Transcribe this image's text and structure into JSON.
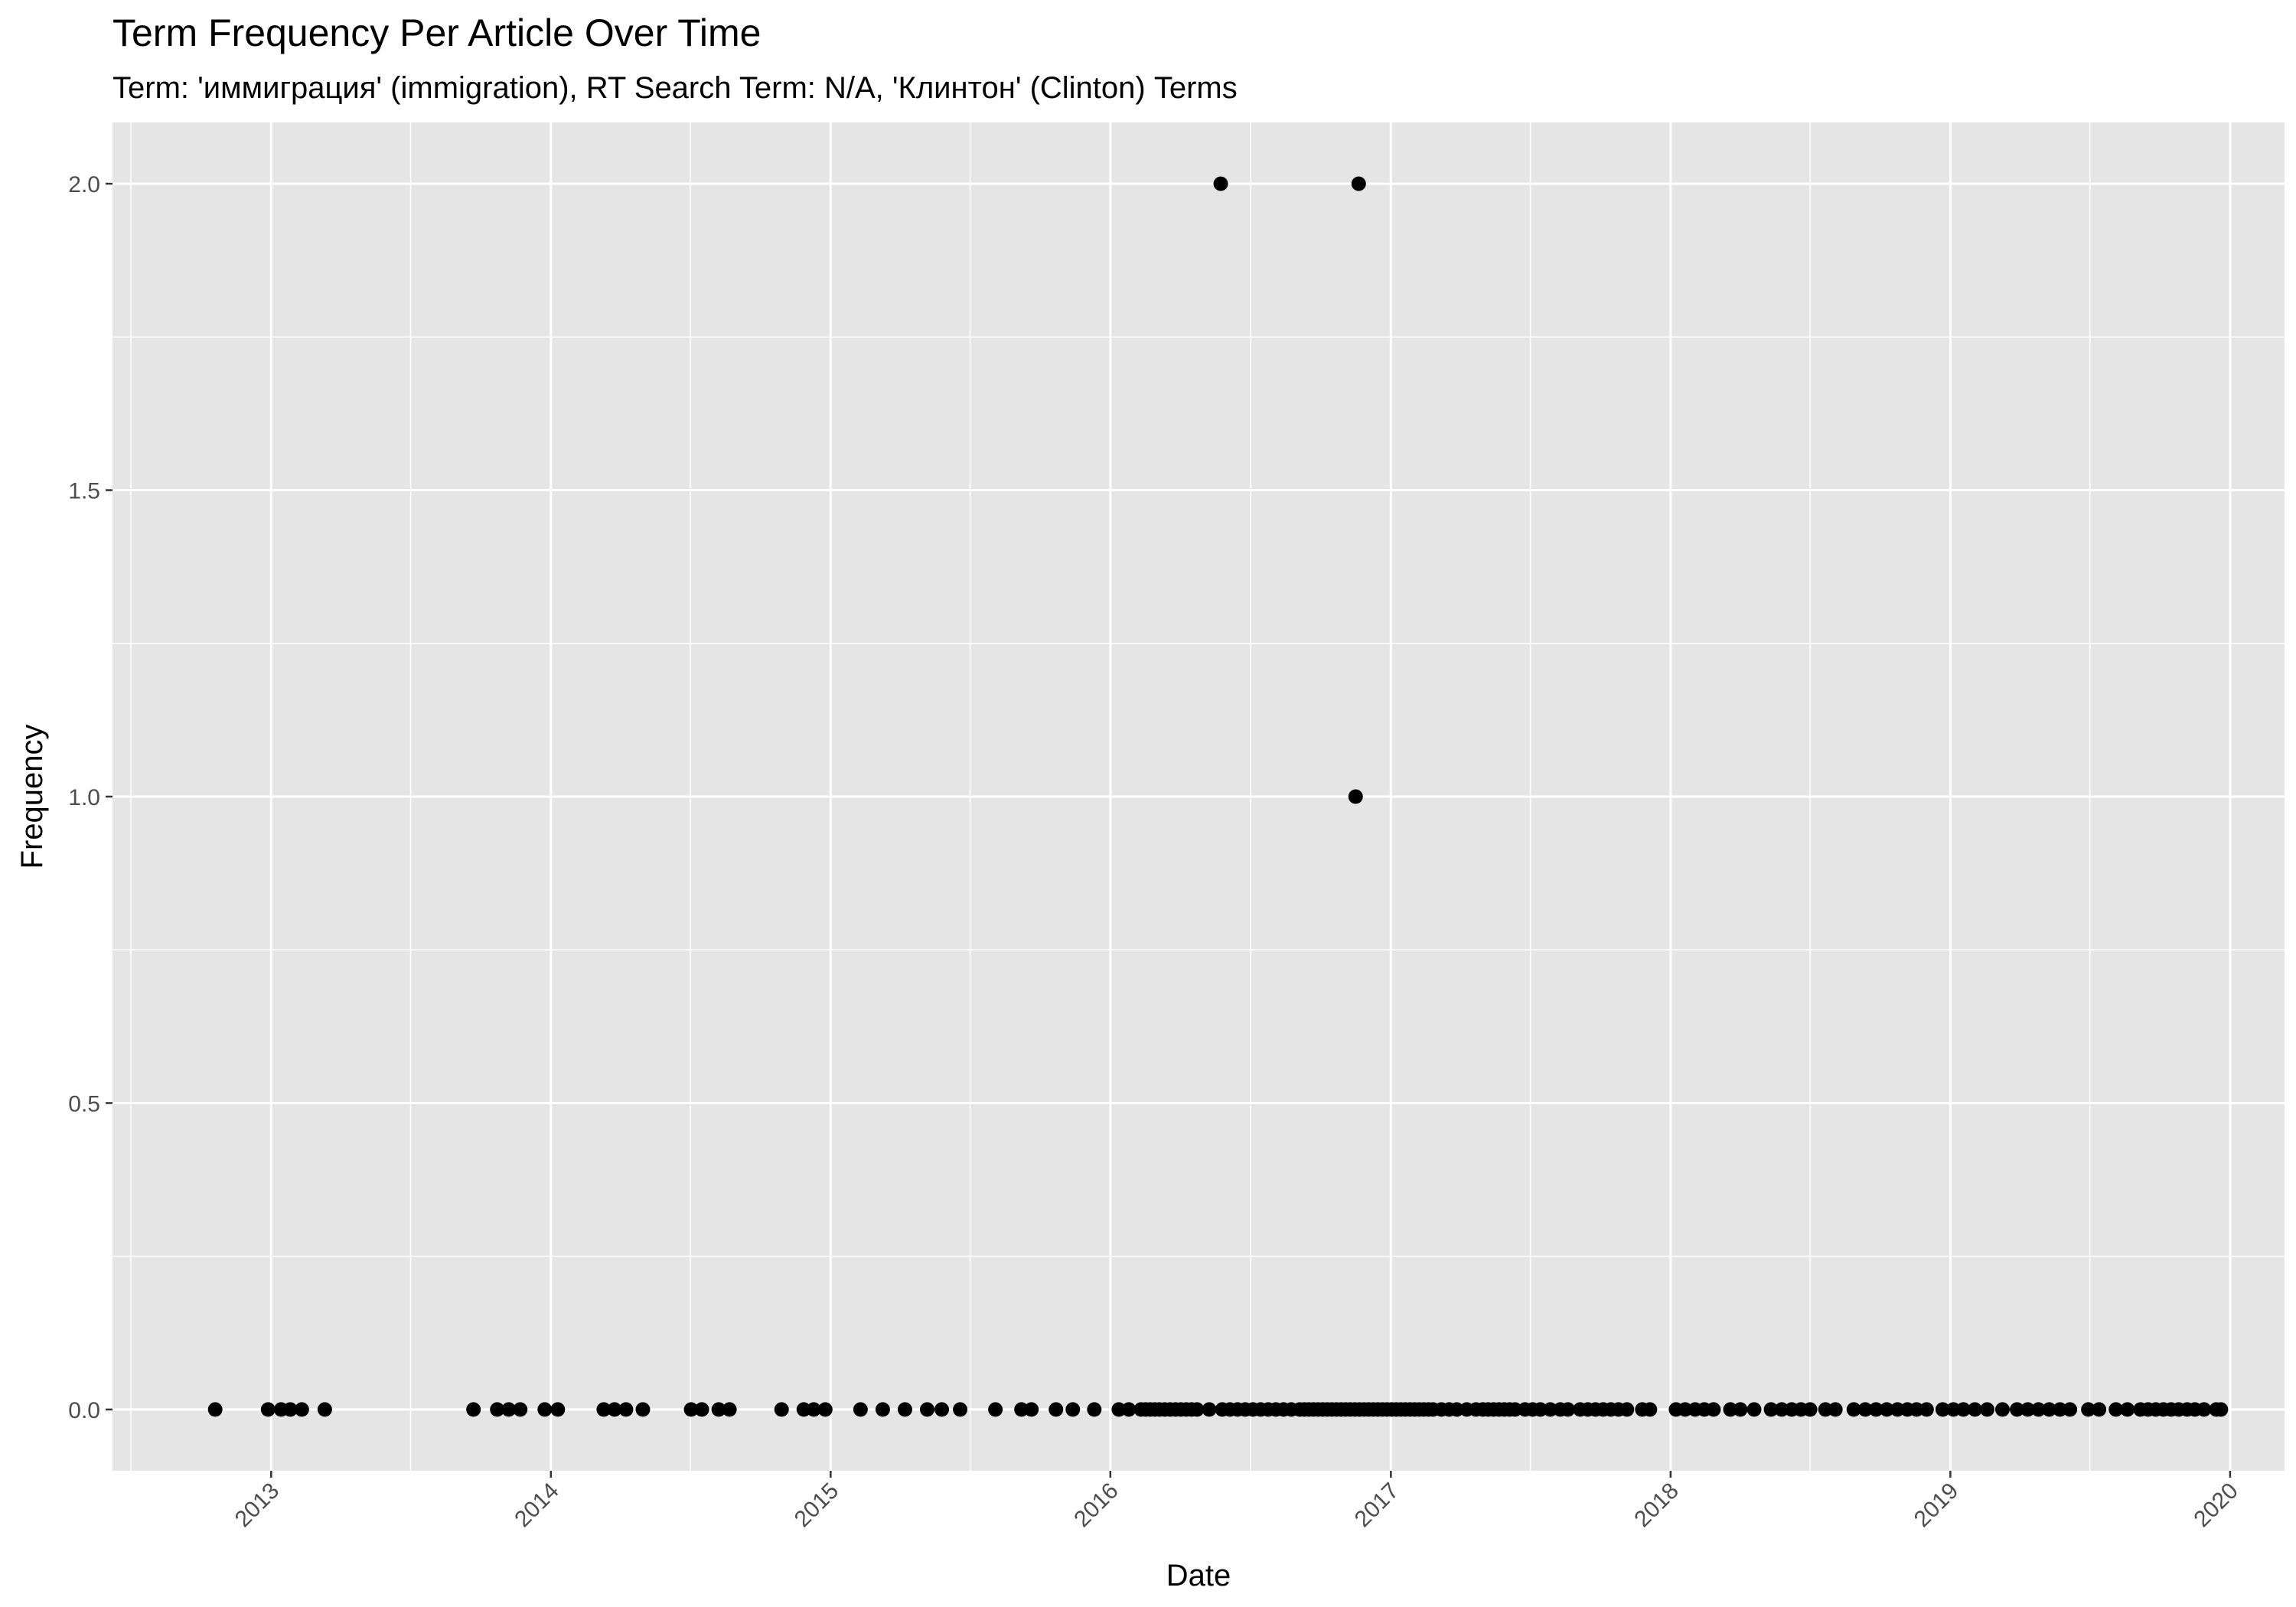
{
  "chart_data": {
    "type": "scatter",
    "title": "Term Frequency Per Article Over Time",
    "subtitle": "Term: 'иммиграция' (immigration), RT Search Term: N/A, 'Клинтон' (Clinton) Terms",
    "xlabel": "Date",
    "ylabel": "Frequency",
    "x_ticks": [
      "2013",
      "2014",
      "2015",
      "2016",
      "2017",
      "2018",
      "2019",
      "2020"
    ],
    "y_ticks": [
      "0.0",
      "0.5",
      "1.0",
      "1.5",
      "2.0"
    ],
    "xlim": [
      "2012-06-08",
      "2020-03-12"
    ],
    "ylim": [
      -0.1,
      2.1
    ],
    "grid": true,
    "colors": {
      "panel": "#e5e5e5",
      "grid": "#ffffff",
      "point": "#000000",
      "tick": "#333333"
    },
    "points": [
      {
        "x": "2012-10-20",
        "y": 0
      },
      {
        "x": "2012-12-28",
        "y": 0
      },
      {
        "x": "2013-01-14",
        "y": 0
      },
      {
        "x": "2013-01-26",
        "y": 0
      },
      {
        "x": "2013-02-10",
        "y": 0
      },
      {
        "x": "2013-03-12",
        "y": 0
      },
      {
        "x": "2013-09-22",
        "y": 0
      },
      {
        "x": "2013-10-23",
        "y": 0
      },
      {
        "x": "2013-11-07",
        "y": 0
      },
      {
        "x": "2013-11-22",
        "y": 0
      },
      {
        "x": "2013-12-24",
        "y": 0
      },
      {
        "x": "2014-01-10",
        "y": 0
      },
      {
        "x": "2014-03-11",
        "y": 0
      },
      {
        "x": "2014-03-25",
        "y": 0
      },
      {
        "x": "2014-04-09",
        "y": 0
      },
      {
        "x": "2014-05-01",
        "y": 0
      },
      {
        "x": "2014-07-03",
        "y": 0
      },
      {
        "x": "2014-07-17",
        "y": 0
      },
      {
        "x": "2014-08-08",
        "y": 0
      },
      {
        "x": "2014-08-22",
        "y": 0
      },
      {
        "x": "2014-10-29",
        "y": 0
      },
      {
        "x": "2014-11-27",
        "y": 0
      },
      {
        "x": "2014-12-10",
        "y": 0
      },
      {
        "x": "2014-12-25",
        "y": 0
      },
      {
        "x": "2015-02-09",
        "y": 0
      },
      {
        "x": "2015-03-10",
        "y": 0
      },
      {
        "x": "2015-04-08",
        "y": 0
      },
      {
        "x": "2015-05-07",
        "y": 0
      },
      {
        "x": "2015-05-26",
        "y": 0
      },
      {
        "x": "2015-06-19",
        "y": 0
      },
      {
        "x": "2015-08-04",
        "y": 0
      },
      {
        "x": "2015-09-07",
        "y": 0
      },
      {
        "x": "2015-09-20",
        "y": 0
      },
      {
        "x": "2015-10-22",
        "y": 0
      },
      {
        "x": "2015-11-13",
        "y": 0
      },
      {
        "x": "2015-12-11",
        "y": 0
      },
      {
        "x": "2016-01-12",
        "y": 0
      },
      {
        "x": "2016-01-25",
        "y": 0
      },
      {
        "x": "2016-02-10",
        "y": 0
      },
      {
        "x": "2016-02-16",
        "y": 0
      },
      {
        "x": "2016-02-22",
        "y": 0
      },
      {
        "x": "2016-02-28",
        "y": 0
      },
      {
        "x": "2016-03-05",
        "y": 0
      },
      {
        "x": "2016-03-12",
        "y": 0
      },
      {
        "x": "2016-03-19",
        "y": 0
      },
      {
        "x": "2016-03-26",
        "y": 0
      },
      {
        "x": "2016-04-02",
        "y": 0
      },
      {
        "x": "2016-04-09",
        "y": 0
      },
      {
        "x": "2016-04-16",
        "y": 0
      },
      {
        "x": "2016-04-23",
        "y": 0
      },
      {
        "x": "2016-05-09",
        "y": 0
      },
      {
        "x": "2016-05-26",
        "y": 0
      },
      {
        "x": "2016-06-05",
        "y": 0
      },
      {
        "x": "2016-06-15",
        "y": 0
      },
      {
        "x": "2016-06-25",
        "y": 0
      },
      {
        "x": "2016-07-05",
        "y": 0
      },
      {
        "x": "2016-07-15",
        "y": 0
      },
      {
        "x": "2016-07-25",
        "y": 0
      },
      {
        "x": "2016-08-04",
        "y": 0
      },
      {
        "x": "2016-08-14",
        "y": 0
      },
      {
        "x": "2016-08-24",
        "y": 0
      },
      {
        "x": "2016-09-04",
        "y": 0
      },
      {
        "x": "2016-09-10",
        "y": 0
      },
      {
        "x": "2016-09-16",
        "y": 0
      },
      {
        "x": "2016-09-22",
        "y": 0
      },
      {
        "x": "2016-09-28",
        "y": 0
      },
      {
        "x": "2016-10-04",
        "y": 0
      },
      {
        "x": "2016-10-10",
        "y": 0
      },
      {
        "x": "2016-10-16",
        "y": 0
      },
      {
        "x": "2016-10-22",
        "y": 0
      },
      {
        "x": "2016-10-28",
        "y": 0
      },
      {
        "x": "2016-11-03",
        "y": 0
      },
      {
        "x": "2016-11-09",
        "y": 0
      },
      {
        "x": "2016-11-15",
        "y": 0
      },
      {
        "x": "2016-11-21",
        "y": 0
      },
      {
        "x": "2016-11-27",
        "y": 0
      },
      {
        "x": "2016-12-03",
        "y": 0
      },
      {
        "x": "2016-12-09",
        "y": 0
      },
      {
        "x": "2016-12-15",
        "y": 0
      },
      {
        "x": "2016-12-21",
        "y": 0
      },
      {
        "x": "2016-12-27",
        "y": 0
      },
      {
        "x": "2017-01-02",
        "y": 0
      },
      {
        "x": "2017-01-08",
        "y": 0
      },
      {
        "x": "2017-01-14",
        "y": 0
      },
      {
        "x": "2017-01-20",
        "y": 0
      },
      {
        "x": "2017-01-26",
        "y": 0
      },
      {
        "x": "2017-02-01",
        "y": 0
      },
      {
        "x": "2017-02-07",
        "y": 0
      },
      {
        "x": "2017-02-13",
        "y": 0
      },
      {
        "x": "2017-02-19",
        "y": 0
      },
      {
        "x": "2017-02-25",
        "y": 0
      },
      {
        "x": "2017-03-08",
        "y": 0
      },
      {
        "x": "2017-03-18",
        "y": 0
      },
      {
        "x": "2017-03-28",
        "y": 0
      },
      {
        "x": "2017-04-10",
        "y": 0
      },
      {
        "x": "2017-04-22",
        "y": 0
      },
      {
        "x": "2017-05-01",
        "y": 0
      },
      {
        "x": "2017-05-08",
        "y": 0
      },
      {
        "x": "2017-05-15",
        "y": 0
      },
      {
        "x": "2017-05-22",
        "y": 0
      },
      {
        "x": "2017-05-29",
        "y": 0
      },
      {
        "x": "2017-06-05",
        "y": 0
      },
      {
        "x": "2017-06-12",
        "y": 0
      },
      {
        "x": "2017-06-25",
        "y": 0
      },
      {
        "x": "2017-07-05",
        "y": 0
      },
      {
        "x": "2017-07-15",
        "y": 0
      },
      {
        "x": "2017-07-28",
        "y": 0
      },
      {
        "x": "2017-08-10",
        "y": 0
      },
      {
        "x": "2017-08-20",
        "y": 0
      },
      {
        "x": "2017-09-05",
        "y": 0
      },
      {
        "x": "2017-09-15",
        "y": 0
      },
      {
        "x": "2017-09-25",
        "y": 0
      },
      {
        "x": "2017-10-05",
        "y": 0
      },
      {
        "x": "2017-10-15",
        "y": 0
      },
      {
        "x": "2017-10-25",
        "y": 0
      },
      {
        "x": "2017-11-05",
        "y": 0
      },
      {
        "x": "2017-11-25",
        "y": 0
      },
      {
        "x": "2017-12-05",
        "y": 0
      },
      {
        "x": "2018-01-08",
        "y": 0
      },
      {
        "x": "2018-01-20",
        "y": 0
      },
      {
        "x": "2018-02-02",
        "y": 0
      },
      {
        "x": "2018-02-14",
        "y": 0
      },
      {
        "x": "2018-02-26",
        "y": 0
      },
      {
        "x": "2018-03-20",
        "y": 0
      },
      {
        "x": "2018-04-02",
        "y": 0
      },
      {
        "x": "2018-04-20",
        "y": 0
      },
      {
        "x": "2018-05-12",
        "y": 0
      },
      {
        "x": "2018-05-26",
        "y": 0
      },
      {
        "x": "2018-06-08",
        "y": 0
      },
      {
        "x": "2018-06-20",
        "y": 0
      },
      {
        "x": "2018-07-02",
        "y": 0
      },
      {
        "x": "2018-07-22",
        "y": 0
      },
      {
        "x": "2018-08-04",
        "y": 0
      },
      {
        "x": "2018-08-28",
        "y": 0
      },
      {
        "x": "2018-09-12",
        "y": 0
      },
      {
        "x": "2018-09-26",
        "y": 0
      },
      {
        "x": "2018-10-10",
        "y": 0
      },
      {
        "x": "2018-10-24",
        "y": 0
      },
      {
        "x": "2018-11-06",
        "y": 0
      },
      {
        "x": "2018-11-18",
        "y": 0
      },
      {
        "x": "2018-12-01",
        "y": 0
      },
      {
        "x": "2018-12-22",
        "y": 0
      },
      {
        "x": "2019-01-05",
        "y": 0
      },
      {
        "x": "2019-01-18",
        "y": 0
      },
      {
        "x": "2019-02-02",
        "y": 0
      },
      {
        "x": "2019-02-18",
        "y": 0
      },
      {
        "x": "2019-03-10",
        "y": 0
      },
      {
        "x": "2019-03-29",
        "y": 0
      },
      {
        "x": "2019-04-12",
        "y": 0
      },
      {
        "x": "2019-04-26",
        "y": 0
      },
      {
        "x": "2019-05-10",
        "y": 0
      },
      {
        "x": "2019-05-24",
        "y": 0
      },
      {
        "x": "2019-06-06",
        "y": 0
      },
      {
        "x": "2019-06-30",
        "y": 0
      },
      {
        "x": "2019-07-14",
        "y": 0
      },
      {
        "x": "2019-08-05",
        "y": 0
      },
      {
        "x": "2019-08-20",
        "y": 0
      },
      {
        "x": "2019-09-06",
        "y": 0
      },
      {
        "x": "2019-09-16",
        "y": 0
      },
      {
        "x": "2019-09-26",
        "y": 0
      },
      {
        "x": "2019-10-06",
        "y": 0
      },
      {
        "x": "2019-10-16",
        "y": 0
      },
      {
        "x": "2019-10-26",
        "y": 0
      },
      {
        "x": "2019-11-06",
        "y": 0
      },
      {
        "x": "2019-11-16",
        "y": 0
      },
      {
        "x": "2019-11-28",
        "y": 0
      },
      {
        "x": "2019-12-14",
        "y": 0
      },
      {
        "x": "2019-12-20",
        "y": 0
      },
      {
        "x": "2016-05-24",
        "y": 2
      },
      {
        "x": "2016-11-20",
        "y": 2
      },
      {
        "x": "2016-11-16",
        "y": 1
      }
    ]
  }
}
